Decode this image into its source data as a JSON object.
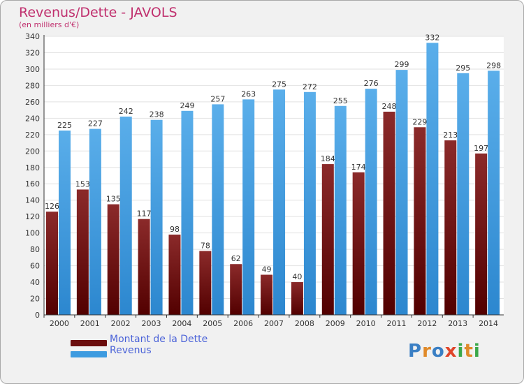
{
  "chart_data": {
    "type": "bar",
    "title": "Revenus/Dette - JAVOLS",
    "subtitle": "(en milliers d'€)",
    "categories": [
      "2000",
      "2001",
      "2002",
      "2003",
      "2004",
      "2005",
      "2006",
      "2007",
      "2008",
      "2009",
      "2010",
      "2011",
      "2012",
      "2013",
      "2014"
    ],
    "series": [
      {
        "name": "Montant de la Dette",
        "color": "#6b0d0d",
        "values": [
          126,
          153,
          135,
          117,
          98,
          78,
          62,
          49,
          40,
          184,
          174,
          248,
          229,
          213,
          197
        ]
      },
      {
        "name": "Revenus",
        "color": "#3d9be0",
        "values": [
          225,
          227,
          242,
          238,
          249,
          257,
          263,
          275,
          272,
          255,
          276,
          299,
          332,
          295,
          298
        ]
      }
    ],
    "ylim": [
      0,
      340
    ],
    "yticks": [
      0,
      20,
      40,
      60,
      80,
      100,
      120,
      140,
      160,
      180,
      200,
      220,
      240,
      260,
      280,
      300,
      320,
      340
    ],
    "grid": true,
    "legend": "bottom-left"
  },
  "brand": {
    "letters": [
      {
        "ch": "P",
        "color": "#3a7fc4"
      },
      {
        "ch": "r",
        "color": "#e08a2a"
      },
      {
        "ch": "o",
        "color": "#3a7fc4"
      },
      {
        "ch": "x",
        "color": "#e0452a"
      },
      {
        "ch": "i",
        "color": "#3aa84a"
      },
      {
        "ch": "t",
        "color": "#e08a2a"
      },
      {
        "ch": "i",
        "color": "#3aa84a"
      }
    ]
  }
}
